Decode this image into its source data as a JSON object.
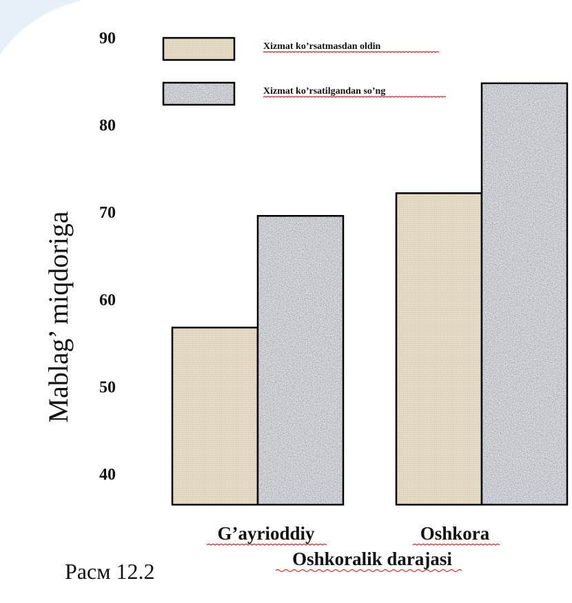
{
  "chart_data": {
    "type": "bar",
    "ylabel": "Mablag’ miqdoriga",
    "xlabel": "Oshkoralik darajasi",
    "yticks": [
      40,
      50,
      60,
      70,
      80,
      90
    ],
    "ylim": [
      36.5,
      90
    ],
    "categories": [
      "G’ayrioddiy",
      "Oshkora"
    ],
    "series": [
      {
        "name": "Xizmat ko’rsatmasdan oldin",
        "values": [
          56.8,
          72.2
        ]
      },
      {
        "name": "Xizmat ko’rsatilgandan so’ng",
        "values": [
          69.6,
          84.8
        ]
      }
    ],
    "legend_position": "top",
    "grid": false,
    "colors": {
      "before": "#e6dcc6",
      "after": "#9a9ea4"
    }
  },
  "caption": "Расм 12.2"
}
